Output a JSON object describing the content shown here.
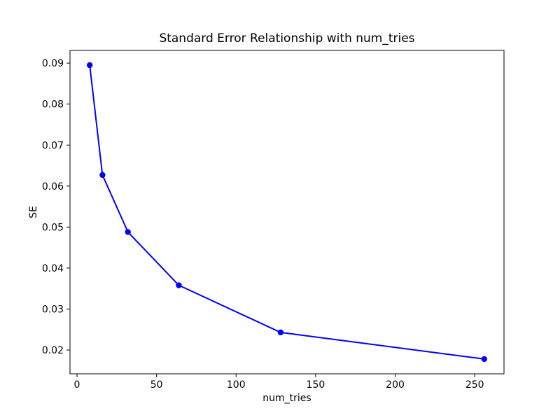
{
  "figure": {
    "title": "Standard Error Relationship with num_tries",
    "xlabel": "num_tries",
    "ylabel": "SE"
  },
  "chart_data": {
    "type": "line",
    "title": "Standard Error Relationship with num_tries",
    "xlabel": "num_tries",
    "ylabel": "SE",
    "x": [
      8,
      16,
      32,
      64,
      128,
      256
    ],
    "y": [
      0.0895,
      0.0627,
      0.0488,
      0.0358,
      0.0243,
      0.0178
    ],
    "series": [
      {
        "name": "SE",
        "x": [
          8,
          16,
          32,
          64,
          128,
          256
        ],
        "y": [
          0.0895,
          0.0627,
          0.0488,
          0.0358,
          0.0243,
          0.0178
        ]
      }
    ],
    "xticks": [
      0,
      50,
      100,
      150,
      200,
      250
    ],
    "yticks": [
      0.02,
      0.03,
      0.04,
      0.05,
      0.06,
      0.07,
      0.08,
      0.09
    ],
    "xlim": [
      -4.4,
      268.4
    ],
    "ylim": [
      0.0142,
      0.0931
    ],
    "grid": false,
    "legend": "none",
    "line_color": "#0000ff",
    "marker": "o",
    "marker_color": "#0000ff",
    "background_color": "#ffffff",
    "spine_color": "#000000"
  }
}
